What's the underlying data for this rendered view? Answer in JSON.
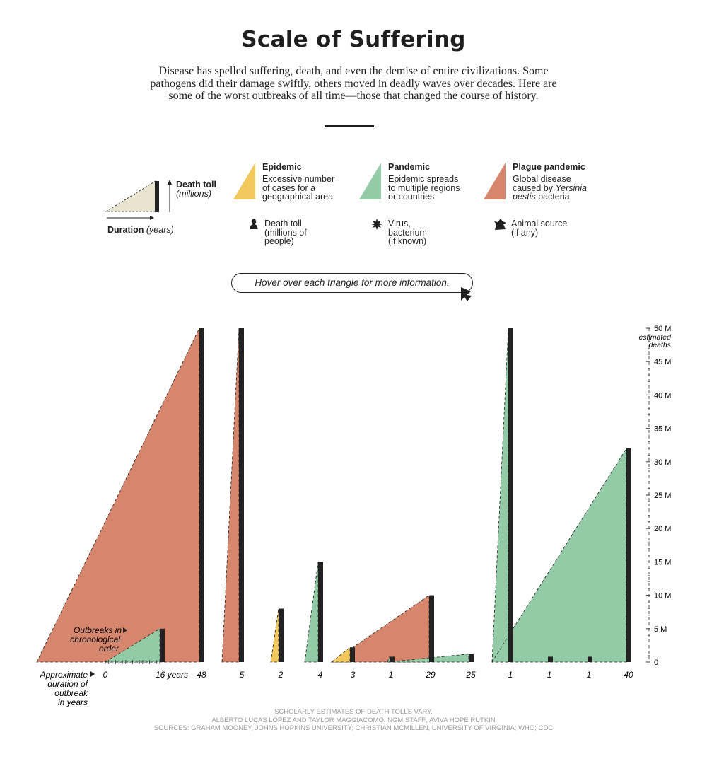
{
  "header": {
    "title": "Scale of Suffering",
    "intro": "Disease has spelled suffering, death, and even the demise of entire civilizations. Some pathogens did their damage swiftly, others moved in deadly waves over decades. Here are some of the worst outbreaks of all time—those that changed the course of history."
  },
  "legend": {
    "death_toll_label": "Death toll",
    "millions_label": "(millions)",
    "duration_label": "Duration",
    "years_label": "(years)",
    "epidemic": {
      "title": "Epidemic",
      "desc_lines": [
        "Excessive number",
        "of cases for a",
        "geographical area"
      ]
    },
    "pandemic": {
      "title": "Pandemic",
      "desc_lines": [
        "Epidemic spreads",
        "to multiple regions",
        "or countries"
      ]
    },
    "plague": {
      "title": "Plague pandemic",
      "desc_line1": "Global disease",
      "desc_line2_pre": "caused by ",
      "desc_line2_italic": "Yersinia",
      "desc_line3_italic": "pestis",
      "desc_line3_post": " bacteria"
    },
    "icon_death": {
      "icon": "person-icon",
      "lines": [
        "Death toll",
        "(millions of",
        "people)"
      ]
    },
    "icon_virus": {
      "icon": "virus-icon",
      "lines": [
        "Virus,",
        "bacterium",
        "(if known)"
      ]
    },
    "icon_animal": {
      "icon": "animal-head-icon",
      "lines": [
        "Animal source",
        "(if any)"
      ]
    }
  },
  "hover_hint": "Hover over each triangle for more information.",
  "colors": {
    "epidemic": "#f2c75c",
    "pandemic": "#94cba7",
    "plague": "#d5866d",
    "bar": "#222222",
    "legend_fill": "#e8e4cf"
  },
  "chart_data": {
    "type": "area",
    "description_labels": {
      "chronology": "Outbreaks in chronological order",
      "duration_axis": "Approximate duration of outbreak in years",
      "legend_scale_start": "0",
      "legend_scale_end": "16 years"
    },
    "y_axis": {
      "title_lines": [
        "estimated",
        "deaths"
      ],
      "ticks": [
        "0",
        "5 M",
        "10 M",
        "15 M",
        "20 M",
        "25 M",
        "30 M",
        "35 M",
        "40 M",
        "45 M",
        "50 M"
      ],
      "ylim": [
        0,
        50
      ]
    },
    "legend_example": {
      "duration": 16,
      "deaths": 5,
      "category": "pandemic"
    },
    "outbreaks": [
      {
        "category": "plague",
        "duration": 48,
        "duration_label": "48",
        "deaths": 50
      },
      {
        "category": "plague",
        "duration": 5,
        "duration_label": "5",
        "deaths": 50
      },
      {
        "category": "epidemic",
        "duration": 2,
        "duration_label": "2",
        "deaths": 8
      },
      {
        "category": "pandemic",
        "duration": 4,
        "duration_label": "4",
        "deaths": 15
      },
      {
        "category": "epidemic",
        "duration": 3,
        "duration_label": "3",
        "deaths": 2.2
      },
      {
        "category": "plague",
        "duration": 29,
        "duration_label": "29",
        "deaths": 10
      },
      {
        "category": "pandemic",
        "duration": 1,
        "duration_label": "1",
        "deaths": 0.8
      },
      {
        "category": "pandemic",
        "duration": 25,
        "duration_label": "25",
        "deaths": 1.2
      },
      {
        "category": "pandemic",
        "duration": 1,
        "duration_label": "1",
        "deaths": 50
      },
      {
        "category": "pandemic",
        "duration": 1,
        "duration_label": "1",
        "deaths": 0.8
      },
      {
        "category": "pandemic",
        "duration": 1,
        "duration_label": "1",
        "deaths": 0.8
      },
      {
        "category": "pandemic",
        "duration": 40,
        "duration_label": "40",
        "deaths": 32
      }
    ]
  },
  "footer": {
    "line1": "Scholarly estimates of death tolls vary.",
    "line2": "Alberto Lucas López and Taylor Maggiacomo, NGM Staff; Aviva Hope Rutkin",
    "line3": "Sources: Graham Mooney, Johns Hopkins University; Christian McMillen, University of Virginia; WHO; CDC"
  }
}
